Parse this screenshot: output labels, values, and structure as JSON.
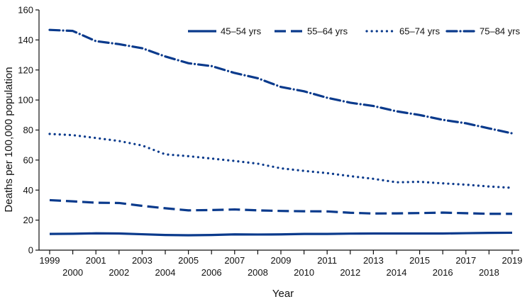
{
  "chart_data": {
    "type": "line",
    "title": "",
    "xlabel": "Year",
    "ylabel": "Deaths per 100,000 population",
    "ylim": [
      0,
      160
    ],
    "yticks": [
      0,
      20,
      40,
      60,
      80,
      100,
      120,
      140,
      160
    ],
    "x": [
      1999,
      2000,
      2001,
      2002,
      2003,
      2004,
      2005,
      2006,
      2007,
      2008,
      2009,
      2010,
      2011,
      2012,
      2013,
      2014,
      2015,
      2016,
      2017,
      2018,
      2019
    ],
    "grid": false,
    "legend_position": "top-right",
    "line_color": "#0a3a8c",
    "series": [
      {
        "name": "45–54 yrs",
        "style": "solid",
        "values": [
          10.8,
          10.9,
          11.2,
          11.1,
          10.6,
          10.1,
          9.9,
          10.1,
          10.5,
          10.4,
          10.5,
          10.8,
          10.8,
          11.0,
          11.1,
          11.1,
          11.1,
          11.1,
          11.3,
          11.5,
          11.6
        ]
      },
      {
        "name": "55–64 yrs",
        "style": "dashed",
        "values": [
          33.3,
          32.5,
          31.6,
          31.4,
          29.5,
          27.9,
          26.5,
          26.7,
          27.1,
          26.5,
          26.1,
          25.9,
          25.8,
          24.9,
          24.4,
          24.5,
          24.7,
          25.0,
          24.6,
          24.2,
          24.2
        ]
      },
      {
        "name": "65–74 yrs",
        "style": "dotted",
        "values": [
          77.4,
          76.6,
          74.7,
          72.7,
          69.7,
          63.8,
          62.6,
          61.0,
          59.4,
          57.6,
          54.5,
          52.8,
          51.3,
          49.3,
          47.5,
          45.2,
          45.5,
          44.5,
          43.6,
          42.4,
          41.5
        ]
      },
      {
        "name": "75–84 yrs",
        "style": "dashdot",
        "values": [
          146.7,
          146.0,
          139.2,
          137.2,
          134.5,
          129.0,
          124.5,
          122.6,
          118.0,
          114.5,
          108.7,
          105.8,
          101.5,
          98.2,
          96.0,
          92.5,
          90.0,
          86.8,
          84.5,
          81.1,
          77.8
        ]
      }
    ]
  }
}
